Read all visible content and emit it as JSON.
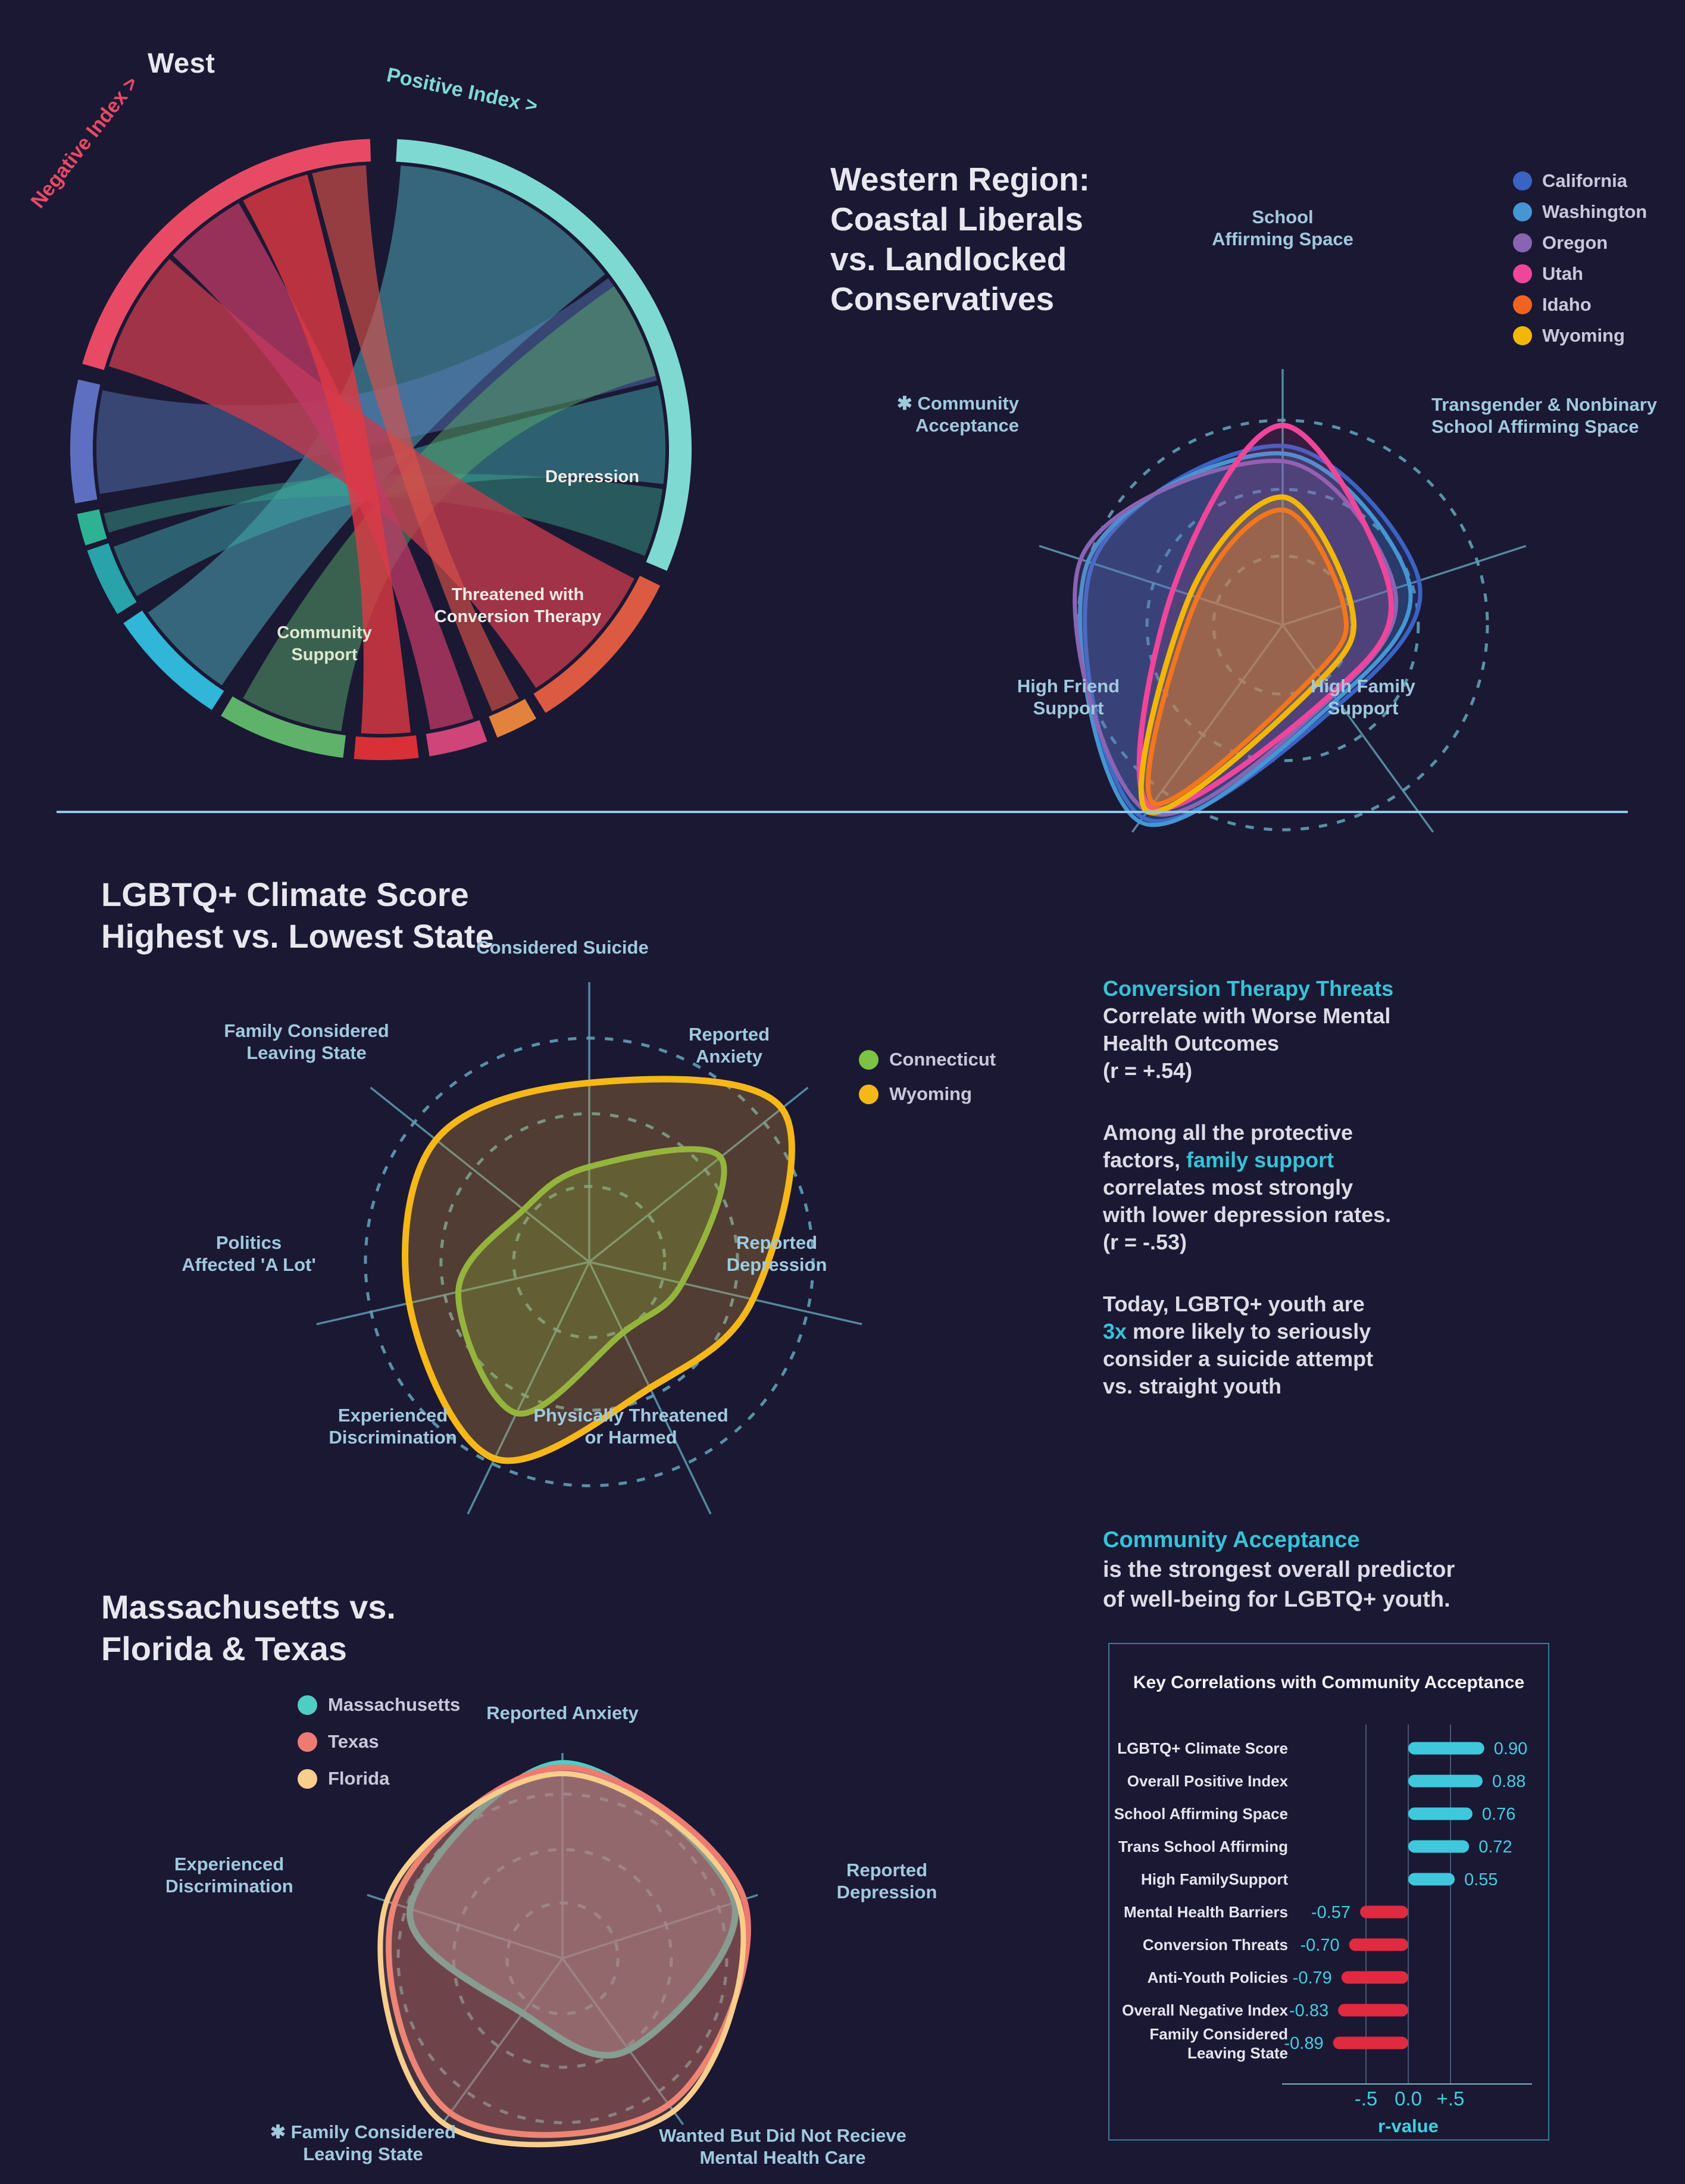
{
  "page": {
    "background": "#1b1834",
    "accent_teal": "#35c4d7",
    "divider_color": "#8fc8e8"
  },
  "chart_data": [
    {
      "type": "chord",
      "id": "west_chord",
      "title": "West",
      "positive_label": "Positive Index >",
      "negative_label": "Negative Index >",
      "positive_color": "#7fd9d3",
      "negative_color": "#e84a66",
      "segments": [
        {
          "name": "positive-index",
          "start": 3,
          "end": 113,
          "color": "#7fd9d3"
        },
        {
          "name": "depression",
          "start": 116,
          "end": 148,
          "color": "#dc5a41"
        },
        {
          "name": "orange-sliver",
          "start": 150,
          "end": 158,
          "color": "#e2823d"
        },
        {
          "name": "conversion-therapy",
          "start": 160,
          "end": 171,
          "color": "#cf4479"
        },
        {
          "name": "red-bottom",
          "start": 173,
          "end": 185,
          "color": "#d92f37"
        },
        {
          "name": "community-support",
          "start": 187,
          "end": 211,
          "color": "#5eb269"
        },
        {
          "name": "cyan",
          "start": 213,
          "end": 236,
          "color": "#2fb6d9"
        },
        {
          "name": "teal",
          "start": 238,
          "end": 251,
          "color": "#27a3a9"
        },
        {
          "name": "emerald",
          "start": 252,
          "end": 258,
          "color": "#2db394"
        },
        {
          "name": "blue",
          "start": 260,
          "end": 283,
          "color": "#5e6fc2"
        },
        {
          "name": "negative-index",
          "start": 286,
          "end": 358,
          "color": "#e84a66"
        }
      ],
      "ribbons": [
        {
          "s": [
            4,
            52
          ],
          "t": [
            214,
            235
          ],
          "color": "#4fb3c2",
          "opacity": 0.5
        },
        {
          "s": [
            53,
            76
          ],
          "t": [
            261,
            282
          ],
          "color": "#5a7fc0",
          "opacity": 0.45
        },
        {
          "s": [
            77,
            97
          ],
          "t": [
            239,
            250
          ],
          "color": "#3fa9ae",
          "opacity": 0.5
        },
        {
          "s": [
            98,
            112
          ],
          "t": [
            253,
            257
          ],
          "color": "#3aa98f",
          "opacity": 0.45
        },
        {
          "s": [
            188,
            209
          ],
          "t": [
            55,
            75
          ],
          "color": "#5aa96b",
          "opacity": 0.5
        },
        {
          "s": [
            287,
            312
          ],
          "t": [
            117,
            147
          ],
          "color": "#c23b4e",
          "opacity": 0.8
        },
        {
          "s": [
            313,
            330
          ],
          "t": [
            161,
            170
          ],
          "color": "#c23a66",
          "opacity": 0.75
        },
        {
          "s": [
            331,
            345
          ],
          "t": [
            174,
            184
          ],
          "color": "#e03a44",
          "opacity": 0.8
        },
        {
          "s": [
            346,
            357
          ],
          "t": [
            151,
            157
          ],
          "color": "#d8524a",
          "opacity": 0.65
        }
      ],
      "inner_labels": [
        {
          "text": "Depression",
          "x": 955,
          "y": 770,
          "color": "#f2ece6"
        },
        {
          "text": "Threatened with\nConversion Therapy",
          "x": 830,
          "y": 968,
          "color": "#f2ece6"
        },
        {
          "text": "Community\nSupport",
          "x": 505,
          "y": 1032,
          "color": "#dfe7d0"
        }
      ]
    },
    {
      "type": "radar",
      "id": "west_radar",
      "title": "Western Region:\nCoastal Liberals\nvs. Landlocked\nConservatives",
      "axes": [
        "School\nAffirming Space",
        "Transgender & Nonbinary\nSchool Affirming Space",
        "High Family\nSupport",
        "High Friend\nSupport",
        "✱ Community\nAcceptance"
      ],
      "rings": [
        0.27,
        0.53,
        0.8
      ],
      "series": [
        {
          "name": "California",
          "color": "#3b63c4",
          "fill": "rgba(60,100,200,0.22)",
          "width": 7,
          "values": [
            0.7,
            0.56,
            0.38,
            0.93,
            0.78
          ]
        },
        {
          "name": "Washington",
          "color": "#4596d3",
          "fill": "rgba(70,150,215,0.18)",
          "width": 7,
          "values": [
            0.67,
            0.52,
            0.36,
            0.95,
            0.8
          ]
        },
        {
          "name": "Oregon",
          "color": "#8a64b4",
          "fill": "rgba(140,100,185,0.18)",
          "width": 7,
          "values": [
            0.64,
            0.46,
            0.34,
            0.9,
            0.83
          ]
        },
        {
          "name": "Utah",
          "color": "#f0459b",
          "fill": "rgba(240,65,150,0.12)",
          "width": 9,
          "values": [
            0.78,
            0.44,
            0.33,
            0.88,
            0.45
          ]
        },
        {
          "name": "Idaho",
          "color": "#f26322",
          "fill": "rgba(240,100,35,0.30)",
          "width": 8,
          "values": [
            0.45,
            0.25,
            0.23,
            0.86,
            0.35
          ]
        },
        {
          "name": "Wyoming",
          "color": "#f2b705",
          "fill": "rgba(245,185,10,0.22)",
          "width": 9,
          "values": [
            0.5,
            0.28,
            0.26,
            0.9,
            0.38
          ]
        }
      ]
    },
    {
      "type": "radar",
      "id": "climate_radar",
      "title": "LGBTQ+ Climate Score\nHighest vs. Lowest State",
      "axes": [
        "Considered Suicide",
        "Reported\nAnxiety",
        "Reported\nDepression",
        "Physically Threatened\nor Harmed",
        "Experienced\nDiscrimination",
        "Politics\nAffected 'A Lot'",
        "Family Considered\nLeaving State"
      ],
      "rings": [
        0.27,
        0.53,
        0.8
      ],
      "series": [
        {
          "name": "Connecticut",
          "color": "#7cc243",
          "fill": "rgba(125,194,66,0.28)",
          "width": 10,
          "values": [
            0.34,
            0.6,
            0.34,
            0.28,
            0.6,
            0.48,
            0.3
          ]
        },
        {
          "name": "Wyoming",
          "color": "#f6b818",
          "fill": "rgba(210,150,50,0.30)",
          "width": 11,
          "values": [
            0.64,
            0.88,
            0.6,
            0.5,
            0.78,
            0.66,
            0.7
          ]
        }
      ]
    },
    {
      "type": "radar",
      "id": "ma_radar",
      "title": "Massachusetts vs.\nFlorida & Texas",
      "axes": [
        "Reported Anxiety",
        "Reported\nDepression",
        "Wanted But Did Not Recieve\nMental Health Care",
        "✱ Family Considered\nLeaving State",
        "Experienced\nDiscrimination"
      ],
      "rings": [
        0.27,
        0.53,
        0.8
      ],
      "series": [
        {
          "name": "Massachusetts",
          "color": "#4ecdc4",
          "fill": "rgba(160,160,180,0.55)",
          "width": 11,
          "values": [
            0.95,
            0.88,
            0.55,
            0.33,
            0.78
          ]
        },
        {
          "name": "Texas",
          "color": "#ee7a72",
          "fill": "rgba(170,75,80,0.40)",
          "width": 10,
          "values": [
            0.93,
            0.93,
            0.88,
            0.93,
            0.86
          ]
        },
        {
          "name": "Florida",
          "color": "#f9cd8b",
          "fill": "rgba(235,180,130,0.18)",
          "width": 9,
          "values": [
            0.9,
            0.9,
            0.92,
            0.99,
            0.9
          ]
        }
      ]
    },
    {
      "type": "bar",
      "id": "correlations",
      "title": "Key Correlations with Community Acceptance",
      "xlabel": "r-value",
      "ticks": [
        {
          "label": "-.5",
          "value": -0.5
        },
        {
          "label": "0.0",
          "value": 0
        },
        {
          "label": "+.5",
          "value": 0.5
        }
      ],
      "pos_color": "#3fc8dc",
      "neg_color": "#e02a3f",
      "rows": [
        {
          "label": "LGBTQ+ Climate Score",
          "value": 0.9
        },
        {
          "label": "Overall Positive Index",
          "value": 0.88
        },
        {
          "label": "School Affirming Space",
          "value": 0.76
        },
        {
          "label": "Trans School Affirming",
          "value": 0.72
        },
        {
          "label": "High FamilySupport",
          "value": 0.55
        },
        {
          "label": "Mental Health Barriers",
          "value": -0.57
        },
        {
          "label": "Conversion Threats",
          "value": -0.7
        },
        {
          "label": "Anti-Youth Policies",
          "value": -0.79
        },
        {
          "label": "Overall Negative Index",
          "value": -0.83
        },
        {
          "label": "Family Considered\nLeaving State",
          "value": -0.89
        }
      ]
    }
  ],
  "stats": {
    "paragraphs": [
      {
        "lines": [
          [
            {
              "t": "Conversion Therapy Threats",
              "c": "teal"
            }
          ],
          [
            {
              "t": "Correlate with Worse Mental"
            }
          ],
          [
            {
              "t": "Health Outcomes"
            }
          ],
          [
            {
              "t": "(r = +.54)"
            }
          ]
        ]
      },
      {
        "lines": [
          [
            {
              "t": "Among all the protective"
            }
          ],
          [
            {
              "t": "factors, "
            },
            {
              "t": "family support",
              "c": "teal"
            }
          ],
          [
            {
              "t": "correlates most strongly"
            }
          ],
          [
            {
              "t": "with lower depression rates."
            }
          ],
          [
            {
              "t": "(r = -.53)"
            }
          ]
        ]
      },
      {
        "lines": [
          [
            {
              "t": "Today, LGBTQ+ youth are"
            }
          ],
          [
            {
              "t": "3x",
              "c": "teal"
            },
            {
              "t": " more likely to seriously"
            }
          ],
          [
            {
              "t": "consider a suicide attempt"
            }
          ],
          [
            {
              "t": "vs. straight youth"
            }
          ]
        ]
      }
    ]
  },
  "predictor": {
    "heading": "Community Acceptance",
    "lines": [
      "is the strongest overall predictor",
      "of well-being for LGBTQ+ youth."
    ]
  }
}
